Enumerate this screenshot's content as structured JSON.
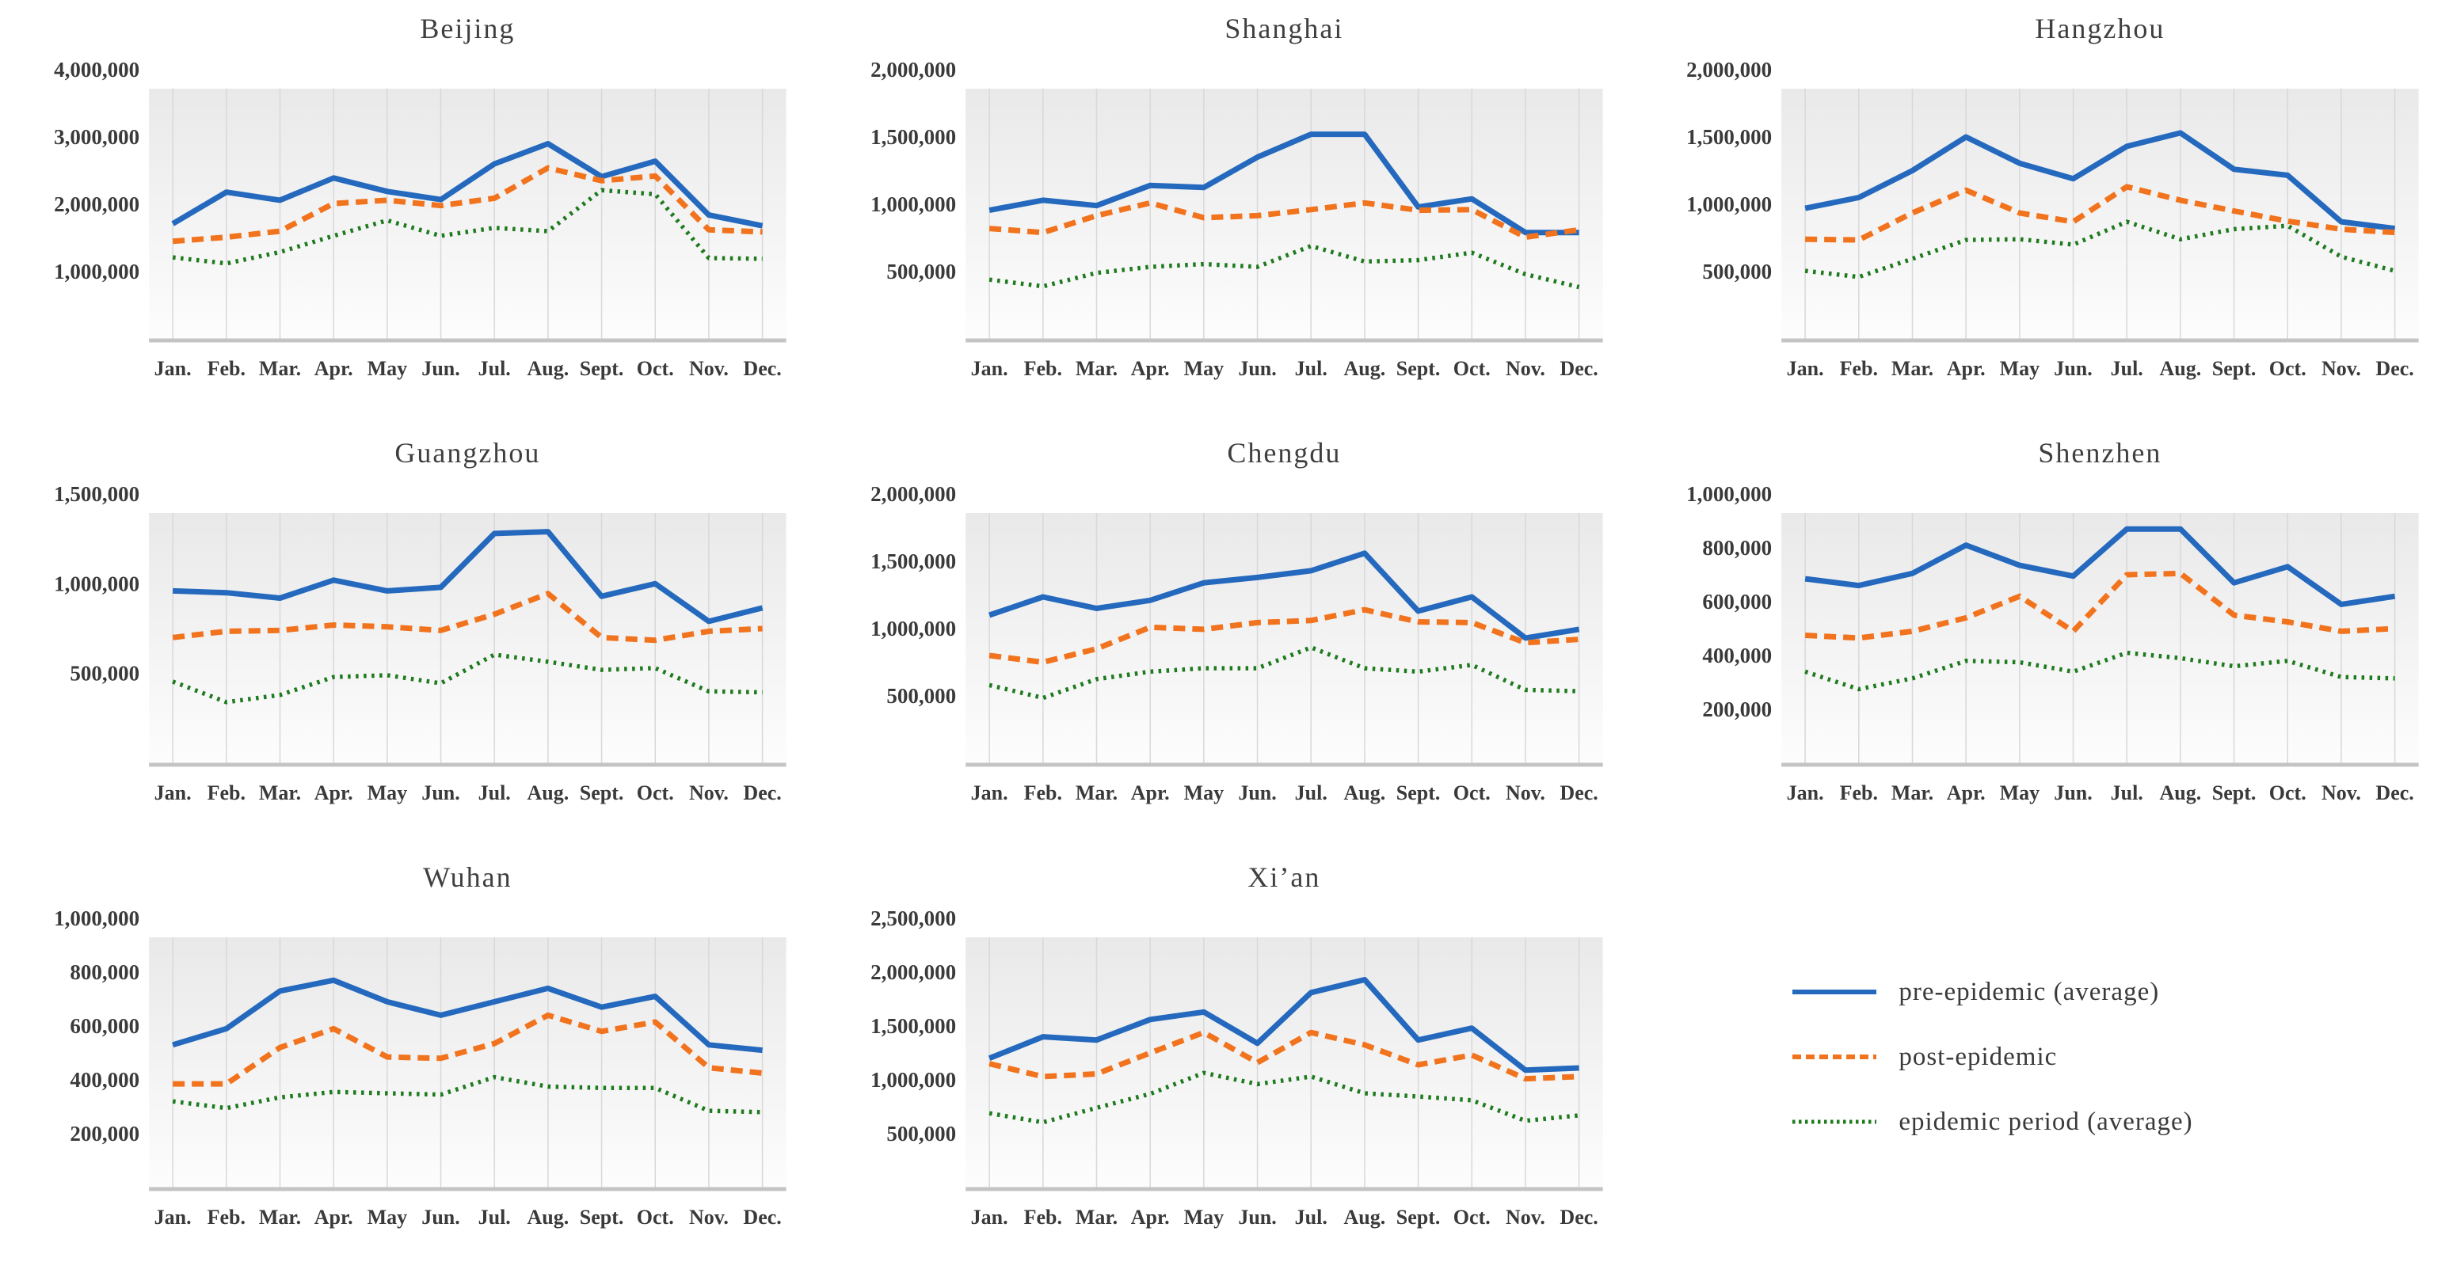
{
  "page": {
    "background": "#ffffff"
  },
  "colors": {
    "pre": "#2469bd",
    "post": "#f2731d",
    "epidemic": "#1e7a1e",
    "axis_text": "#3a3a3a",
    "title_text": "#3f3f3f",
    "gridline": "#d8d8d8",
    "baseline": "#c4c4c4",
    "plot_bg_top": "#e9e9e9",
    "plot_bg_bottom": "#fdfdfd"
  },
  "months": [
    "Jan.",
    "Feb.",
    "Mar.",
    "Apr.",
    "May",
    "Jun.",
    "Jul.",
    "Aug.",
    "Sept.",
    "Oct.",
    "Nov.",
    "Dec."
  ],
  "legend": {
    "items": [
      {
        "key": "pre",
        "label": "pre-epidemic (average)"
      },
      {
        "key": "post",
        "label": "post-epidemic"
      },
      {
        "key": "epidemic",
        "label": "epidemic period (average)"
      }
    ]
  },
  "chart_data": [
    {
      "type": "line",
      "title": "Beijing",
      "y_ticks": [
        4000000,
        3000000,
        2000000,
        1000000
      ],
      "tick_step": 1000000,
      "ylim": [
        0,
        4000000
      ],
      "series": [
        {
          "key": "pre",
          "name": "pre-epidemic (average)",
          "values": [
            1710000,
            2180000,
            2060000,
            2390000,
            2190000,
            2070000,
            2600000,
            2900000,
            2410000,
            2640000,
            1840000,
            1680000
          ]
        },
        {
          "key": "post",
          "name": "post-epidemic",
          "values": [
            1450000,
            1510000,
            1600000,
            2010000,
            2060000,
            1980000,
            2090000,
            2540000,
            2350000,
            2420000,
            1620000,
            1590000
          ]
        },
        {
          "key": "epidemic",
          "name": "epidemic period (average)",
          "values": [
            1210000,
            1120000,
            1290000,
            1530000,
            1760000,
            1530000,
            1650000,
            1600000,
            2210000,
            2150000,
            1200000,
            1190000
          ]
        }
      ]
    },
    {
      "type": "line",
      "title": "Shanghai",
      "y_ticks": [
        2000000,
        1500000,
        1000000,
        500000
      ],
      "tick_step": 500000,
      "ylim": [
        0,
        2000000
      ],
      "series": [
        {
          "key": "pre",
          "name": "pre-epidemic (average)",
          "values": [
            955000,
            1030000,
            990000,
            1140000,
            1125000,
            1350000,
            1520000,
            1520000,
            980000,
            1040000,
            790000,
            790000
          ]
        },
        {
          "key": "post",
          "name": "post-epidemic",
          "values": [
            820000,
            790000,
            915000,
            1010000,
            900000,
            915000,
            960000,
            1010000,
            955000,
            960000,
            755000,
            810000
          ]
        },
        {
          "key": "epidemic",
          "name": "epidemic period (average)",
          "values": [
            440000,
            390000,
            490000,
            535000,
            555000,
            535000,
            690000,
            575000,
            585000,
            640000,
            480000,
            385000
          ]
        }
      ]
    },
    {
      "type": "line",
      "title": "Hangzhou",
      "y_ticks": [
        2000000,
        1500000,
        1000000,
        500000
      ],
      "tick_step": 500000,
      "ylim": [
        0,
        2000000
      ],
      "series": [
        {
          "key": "pre",
          "name": "pre-epidemic (average)",
          "values": [
            970000,
            1050000,
            1250000,
            1500000,
            1305000,
            1190000,
            1430000,
            1530000,
            1260000,
            1215000,
            870000,
            820000
          ]
        },
        {
          "key": "post",
          "name": "post-epidemic",
          "values": [
            740000,
            735000,
            935000,
            1105000,
            935000,
            870000,
            1130000,
            1030000,
            950000,
            875000,
            815000,
            790000
          ]
        },
        {
          "key": "epidemic",
          "name": "epidemic period (average)",
          "values": [
            505000,
            460000,
            595000,
            735000,
            740000,
            700000,
            870000,
            740000,
            815000,
            840000,
            610000,
            505000
          ]
        }
      ]
    },
    {
      "type": "line",
      "title": "Guangzhou",
      "y_ticks": [
        1500000,
        1000000,
        500000
      ],
      "tick_step": 500000,
      "ylim": [
        0,
        1500000
      ],
      "series": [
        {
          "key": "pre",
          "name": "pre-epidemic (average)",
          "values": [
            960000,
            950000,
            920000,
            1020000,
            960000,
            980000,
            1280000,
            1290000,
            930000,
            1000000,
            790000,
            865000
          ]
        },
        {
          "key": "post",
          "name": "post-epidemic",
          "values": [
            700000,
            735000,
            740000,
            770000,
            760000,
            740000,
            830000,
            945000,
            700000,
            685000,
            735000,
            750000
          ]
        },
        {
          "key": "epidemic",
          "name": "epidemic period (average)",
          "values": [
            455000,
            340000,
            380000,
            480000,
            490000,
            445000,
            605000,
            565000,
            520000,
            530000,
            400000,
            395000
          ]
        }
      ]
    },
    {
      "type": "line",
      "title": "Chengdu",
      "y_ticks": [
        2000000,
        1500000,
        1000000,
        500000
      ],
      "tick_step": 500000,
      "ylim": [
        0,
        2000000
      ],
      "series": [
        {
          "key": "pre",
          "name": "pre-epidemic (average)",
          "values": [
            1100000,
            1235000,
            1150000,
            1210000,
            1340000,
            1380000,
            1430000,
            1560000,
            1130000,
            1235000,
            930000,
            995000
          ]
        },
        {
          "key": "post",
          "name": "post-epidemic",
          "values": [
            800000,
            750000,
            850000,
            1010000,
            995000,
            1045000,
            1060000,
            1140000,
            1050000,
            1045000,
            895000,
            920000
          ]
        },
        {
          "key": "epidemic",
          "name": "epidemic period (average)",
          "values": [
            580000,
            485000,
            625000,
            680000,
            705000,
            705000,
            860000,
            705000,
            680000,
            730000,
            545000,
            535000
          ]
        }
      ]
    },
    {
      "type": "line",
      "title": "Shenzhen",
      "y_ticks": [
        1000000,
        800000,
        600000,
        400000,
        200000
      ],
      "tick_step": 200000,
      "ylim": [
        0,
        1000000
      ],
      "series": [
        {
          "key": "pre",
          "name": "pre-epidemic (average)",
          "values": [
            685000,
            660000,
            705000,
            810000,
            735000,
            695000,
            870000,
            870000,
            670000,
            730000,
            590000,
            620000
          ]
        },
        {
          "key": "post",
          "name": "post-epidemic",
          "values": [
            475000,
            465000,
            490000,
            540000,
            620000,
            490000,
            700000,
            705000,
            550000,
            525000,
            490000,
            500000
          ]
        },
        {
          "key": "epidemic",
          "name": "epidemic period (average)",
          "values": [
            340000,
            275000,
            315000,
            380000,
            375000,
            340000,
            410000,
            390000,
            360000,
            380000,
            320000,
            315000
          ]
        }
      ]
    },
    {
      "type": "line",
      "title": "Wuhan",
      "y_ticks": [
        1000000,
        800000,
        600000,
        400000,
        200000
      ],
      "tick_step": 200000,
      "ylim": [
        0,
        1000000
      ],
      "series": [
        {
          "key": "pre",
          "name": "pre-epidemic (average)",
          "values": [
            530000,
            590000,
            730000,
            770000,
            690000,
            640000,
            690000,
            740000,
            670000,
            710000,
            530000,
            510000
          ]
        },
        {
          "key": "post",
          "name": "post-epidemic",
          "values": [
            385000,
            385000,
            520000,
            590000,
            485000,
            480000,
            535000,
            640000,
            580000,
            615000,
            445000,
            425000
          ]
        },
        {
          "key": "epidemic",
          "name": "epidemic period (average)",
          "values": [
            320000,
            295000,
            335000,
            355000,
            350000,
            345000,
            410000,
            375000,
            370000,
            370000,
            285000,
            280000
          ]
        }
      ]
    },
    {
      "type": "line",
      "title": "Xi’an",
      "y_ticks": [
        2500000,
        2000000,
        1500000,
        1000000,
        500000
      ],
      "tick_step": 500000,
      "ylim": [
        0,
        2500000
      ],
      "series": [
        {
          "key": "pre",
          "name": "pre-epidemic (average)",
          "values": [
            1200000,
            1400000,
            1370000,
            1560000,
            1630000,
            1340000,
            1810000,
            1930000,
            1370000,
            1480000,
            1090000,
            1110000
          ]
        },
        {
          "key": "post",
          "name": "post-epidemic",
          "values": [
            1150000,
            1030000,
            1055000,
            1250000,
            1440000,
            1160000,
            1440000,
            1325000,
            1140000,
            1230000,
            1010000,
            1030000
          ]
        },
        {
          "key": "epidemic",
          "name": "epidemic period (average)",
          "values": [
            690000,
            605000,
            740000,
            870000,
            1065000,
            960000,
            1030000,
            875000,
            845000,
            810000,
            620000,
            670000
          ]
        }
      ]
    }
  ]
}
